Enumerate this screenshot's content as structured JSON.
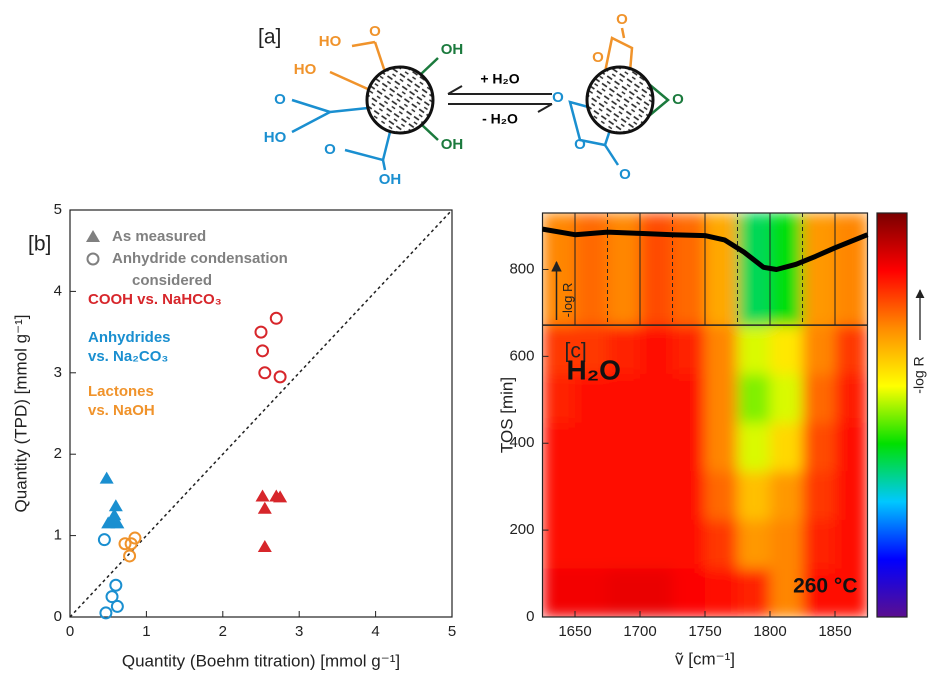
{
  "diagram": {
    "label": "[a]",
    "forward": "+ H₂O",
    "reverse": "- H₂O",
    "left_groups": [
      {
        "text": "O",
        "color": "#f0932b"
      },
      {
        "text": "HO",
        "color": "#f0932b"
      },
      {
        "text": "HO",
        "color": "#f0932b"
      },
      {
        "text": "OH",
        "color": "#1b7a3d"
      },
      {
        "text": "O",
        "color": "#1a8fd0"
      },
      {
        "text": "HO",
        "color": "#1a8fd0"
      },
      {
        "text": "O",
        "color": "#1a8fd0"
      },
      {
        "text": "OH",
        "color": "#1b7a3d"
      },
      {
        "text": "OH",
        "color": "#1a8fd0"
      }
    ],
    "right_groups": [
      {
        "text": "O",
        "color": "#f0932b"
      },
      {
        "text": "O",
        "color": "#f0932b"
      },
      {
        "text": "O",
        "color": "#1a8fd0"
      },
      {
        "text": "O",
        "color": "#1a8fd0"
      },
      {
        "text": "O",
        "color": "#1a8fd0"
      },
      {
        "text": "O",
        "color": "#1b7a3d"
      }
    ]
  },
  "chart_data": [
    {
      "type": "scatter",
      "label": "[b]",
      "xlabel": "Quantity (Boehm titration) [mmol g⁻¹]",
      "ylabel": "Quantity (TPD) [mmol g⁻¹]",
      "xlim": [
        0,
        5
      ],
      "ylim": [
        0,
        5
      ],
      "xticks": [
        0,
        1,
        2,
        3,
        4,
        5
      ],
      "yticks": [
        0,
        1,
        2,
        3,
        4,
        5
      ],
      "diagonal": true,
      "legend": [
        {
          "label": "As measured",
          "marker": "triangle",
          "color": "#808080"
        },
        {
          "label": "Anhydride condensation considered",
          "marker": "circle",
          "color": "#808080"
        }
      ],
      "annotations": [
        {
          "lines": [
            "COOH vs. NaHCO₃"
          ],
          "color": "#d7262b"
        },
        {
          "lines": [
            "Anhydrides",
            "vs. Na₂CO₃"
          ],
          "color": "#1a8fd0"
        },
        {
          "lines": [
            "Lactones",
            "vs. NaOH"
          ],
          "color": "#f0932b"
        }
      ],
      "series": [
        {
          "marker": "triangle",
          "color": "#d7262b",
          "x": [
            2.52,
            2.55,
            2.55,
            2.7,
            2.75
          ],
          "values": [
            1.48,
            1.33,
            0.86,
            1.48,
            1.47
          ]
        },
        {
          "marker": "circle",
          "color": "#d7262b",
          "x": [
            2.5,
            2.52,
            2.55,
            2.7,
            2.75
          ],
          "values": [
            3.5,
            3.27,
            3.0,
            3.67,
            2.95
          ]
        },
        {
          "marker": "triangle",
          "color": "#1a8fd0",
          "x": [
            0.48,
            0.55,
            0.6,
            0.58,
            0.62,
            0.5
          ],
          "values": [
            1.7,
            1.17,
            1.36,
            1.25,
            1.15,
            1.15
          ]
        },
        {
          "marker": "circle",
          "color": "#1a8fd0",
          "x": [
            0.45,
            0.47,
            0.55,
            0.6,
            0.62
          ],
          "values": [
            0.95,
            0.05,
            0.25,
            0.39,
            0.13
          ]
        },
        {
          "marker": "circle",
          "color": "#f0932b",
          "x": [
            0.72,
            0.78,
            0.8,
            0.85
          ],
          "values": [
            0.9,
            0.75,
            0.9,
            0.97
          ]
        }
      ]
    },
    {
      "type": "heatmap",
      "label": "[c]",
      "xlabel": "ṽ [cm⁻¹]",
      "ylabel": "TOS [min]",
      "xlim": [
        1625,
        1875
      ],
      "ylim": [
        0,
        930
      ],
      "xticks": [
        1650,
        1700,
        1750,
        1800,
        1850
      ],
      "minor_xticks": [
        1675,
        1725,
        1775,
        1825
      ],
      "yticks": [
        0,
        200,
        400,
        600,
        800
      ],
      "x_edges": [
        1625,
        1650,
        1675,
        1700,
        1725,
        1750,
        1775,
        1800,
        1825,
        1850,
        1875
      ],
      "y_edges": [
        0,
        112,
        224,
        336,
        448,
        560,
        672,
        930
      ],
      "z": [
        [
          0.87,
          0.87,
          0.88,
          0.88,
          0.86,
          0.85,
          0.82,
          0.72,
          0.84,
          0.85
        ],
        [
          0.85,
          0.85,
          0.85,
          0.85,
          0.85,
          0.8,
          0.7,
          0.72,
          0.82,
          0.85
        ],
        [
          0.85,
          0.85,
          0.85,
          0.85,
          0.85,
          0.75,
          0.65,
          0.7,
          0.8,
          0.85
        ],
        [
          0.85,
          0.85,
          0.85,
          0.85,
          0.85,
          0.72,
          0.55,
          0.62,
          0.78,
          0.85
        ],
        [
          0.82,
          0.85,
          0.85,
          0.85,
          0.85,
          0.72,
          0.5,
          0.55,
          0.75,
          0.83
        ],
        [
          0.8,
          0.8,
          0.82,
          0.85,
          0.82,
          0.72,
          0.55,
          0.6,
          0.72,
          0.8
        ],
        [
          0.72,
          0.75,
          0.72,
          0.78,
          0.75,
          0.68,
          0.38,
          0.42,
          0.7,
          0.72
        ]
      ],
      "zlim": [
        0,
        1
      ],
      "colormap": [
        "#5b0f8f",
        "#0000ff",
        "#00c8ff",
        "#00e000",
        "#ffff00",
        "#ff8c00",
        "#ff0000",
        "#7a0000"
      ],
      "colorbar_label": "-log R",
      "spectrum": {
        "label": "-log R",
        "x": [
          1625,
          1650,
          1675,
          1700,
          1725,
          1750,
          1765,
          1780,
          1795,
          1805,
          1820,
          1835,
          1850,
          1865,
          1875
        ],
        "values": [
          893,
          880,
          886,
          883,
          880,
          878,
          868,
          840,
          805,
          800,
          812,
          830,
          850,
          868,
          880
        ]
      },
      "annotations": [
        {
          "text": "H₂O",
          "color": "#111"
        },
        {
          "text": "260 °C",
          "color": "#111"
        }
      ]
    }
  ]
}
